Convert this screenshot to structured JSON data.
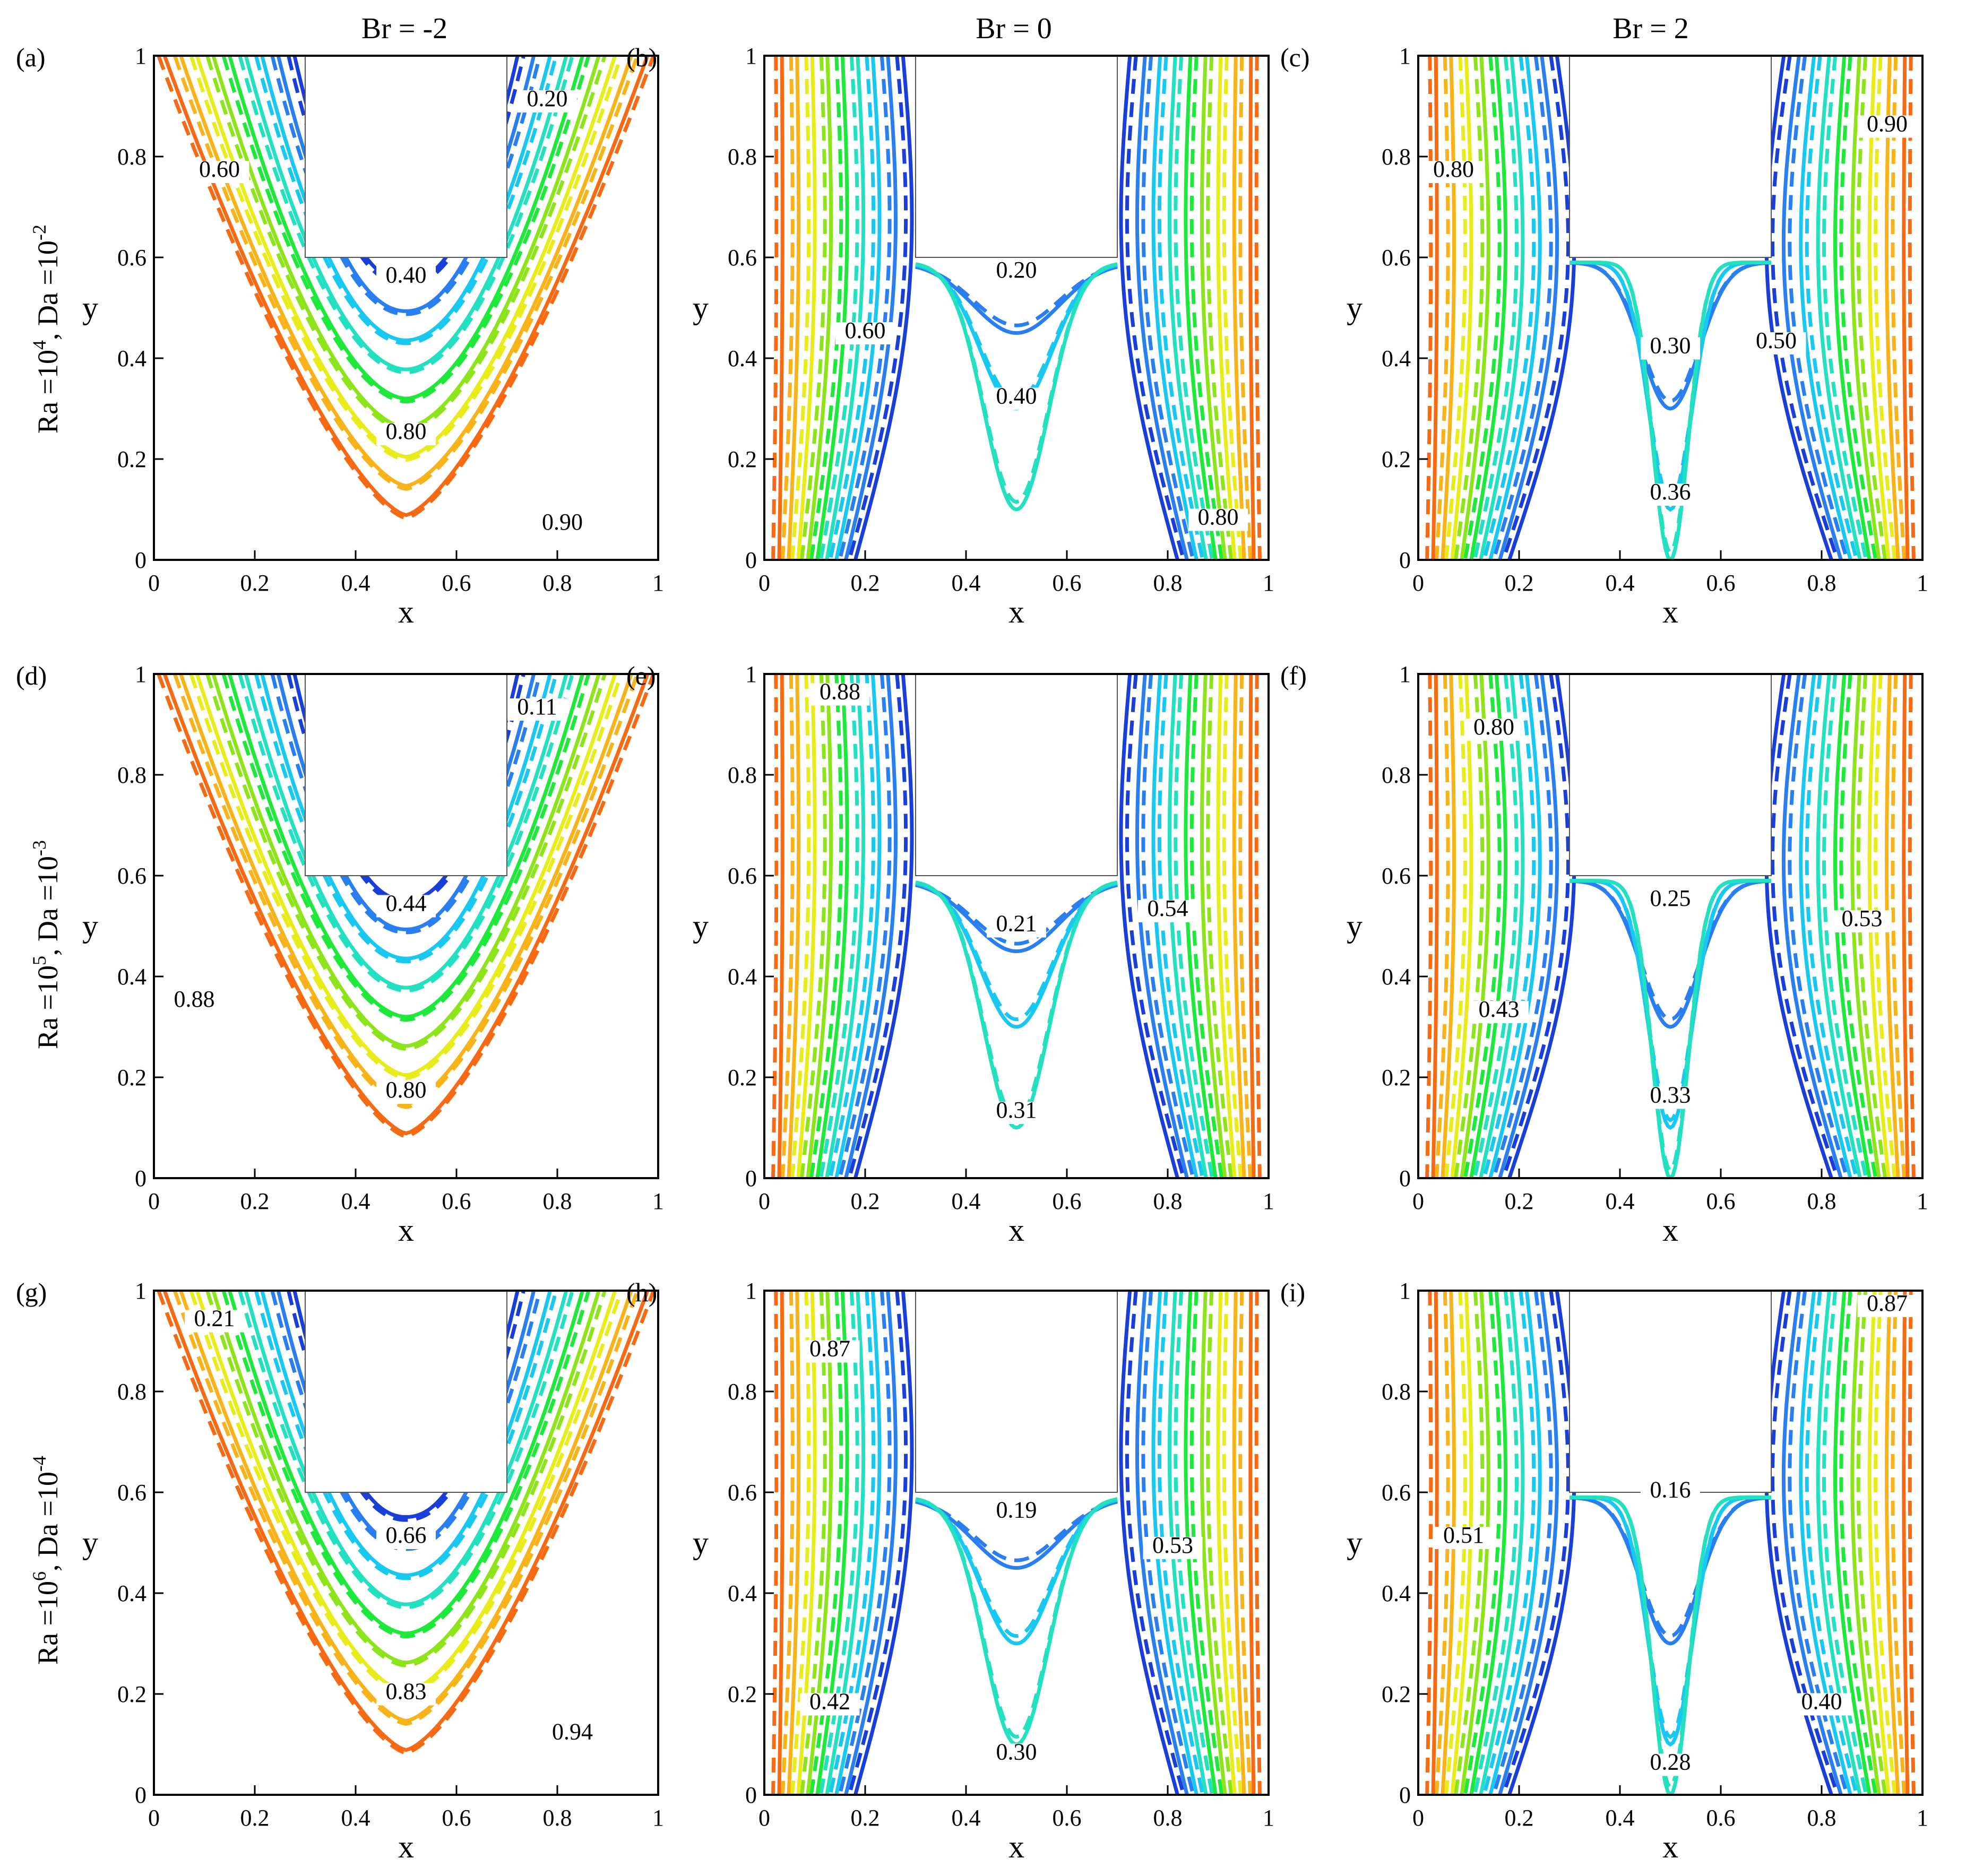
{
  "figure": {
    "column_headers": [
      "Br = -2",
      "Br = 0",
      "Br = 2"
    ],
    "row_labels": [
      {
        "ra_base": "Ra =10",
        "ra_exp": "4",
        "da_base": ",  Da =10",
        "da_exp": "-2"
      },
      {
        "ra_base": "Ra =10",
        "ra_exp": "5",
        "da_base": ",  Da =10",
        "da_exp": "-3"
      },
      {
        "ra_base": "Ra =10",
        "ra_exp": "6",
        "da_base": ",  Da =10",
        "da_exp": "-4"
      }
    ]
  },
  "chart_data": {
    "type": "contour",
    "xlabel": "x",
    "ylabel": "y",
    "xlim": [
      0,
      1
    ],
    "ylim": [
      0,
      1
    ],
    "xticks": [
      "0",
      "0.2",
      "0.4",
      "0.6",
      "0.8",
      "1"
    ],
    "yticks": [
      "0",
      "0.2",
      "0.4",
      "0.6",
      "0.8",
      "1"
    ],
    "obstacle": {
      "x": [
        0.3,
        0.7
      ],
      "y": [
        0.6,
        1.0
      ]
    },
    "line_styles": [
      "solid",
      "dashed"
    ],
    "colors": [
      "#1a3fd9",
      "#2a7ff0",
      "#19c8f0",
      "#22e0c0",
      "#1ee83a",
      "#8ee41a",
      "#e8ec1a",
      "#f8b21a",
      "#f76a14"
    ],
    "panels": [
      {
        "id": "(a)",
        "br": -2,
        "shape": "u",
        "labels": [
          {
            "text": "0.20",
            "x": 0.78,
            "y": 0.9
          },
          {
            "text": "0.60",
            "x": 0.13,
            "y": 0.76
          },
          {
            "text": "0.40",
            "x": 0.5,
            "y": 0.55
          },
          {
            "text": "0.80",
            "x": 0.5,
            "y": 0.24
          },
          {
            "text": "0.90",
            "x": 0.81,
            "y": 0.06
          }
        ]
      },
      {
        "id": "(b)",
        "br": 0,
        "shape": "v",
        "labels": [
          {
            "text": "0.20",
            "x": 0.5,
            "y": 0.56
          },
          {
            "text": "0.60",
            "x": 0.2,
            "y": 0.44
          },
          {
            "text": "0.40",
            "x": 0.5,
            "y": 0.31
          },
          {
            "text": "0.80",
            "x": 0.9,
            "y": 0.07
          }
        ]
      },
      {
        "id": "(c)",
        "br": 2,
        "shape": "w",
        "labels": [
          {
            "text": "0.90",
            "x": 0.93,
            "y": 0.85
          },
          {
            "text": "0.80",
            "x": 0.07,
            "y": 0.76
          },
          {
            "text": "0.30",
            "x": 0.5,
            "y": 0.41
          },
          {
            "text": "0.50",
            "x": 0.71,
            "y": 0.42
          },
          {
            "text": "0.36",
            "x": 0.5,
            "y": 0.12
          }
        ]
      },
      {
        "id": "(d)",
        "br": -2,
        "shape": "u",
        "labels": [
          {
            "text": "0.11",
            "x": 0.76,
            "y": 0.92
          },
          {
            "text": "0.44",
            "x": 0.5,
            "y": 0.53
          },
          {
            "text": "0.88",
            "x": 0.08,
            "y": 0.34
          },
          {
            "text": "0.80",
            "x": 0.5,
            "y": 0.16
          }
        ]
      },
      {
        "id": "(e)",
        "br": 0,
        "shape": "v",
        "labels": [
          {
            "text": "0.88",
            "x": 0.15,
            "y": 0.95
          },
          {
            "text": "0.21",
            "x": 0.5,
            "y": 0.49
          },
          {
            "text": "0.54",
            "x": 0.8,
            "y": 0.52
          },
          {
            "text": "0.31",
            "x": 0.5,
            "y": 0.12
          }
        ]
      },
      {
        "id": "(f)",
        "br": 2,
        "shape": "w",
        "labels": [
          {
            "text": "0.80",
            "x": 0.15,
            "y": 0.88
          },
          {
            "text": "0.25",
            "x": 0.5,
            "y": 0.54
          },
          {
            "text": "0.53",
            "x": 0.88,
            "y": 0.5
          },
          {
            "text": "0.43",
            "x": 0.16,
            "y": 0.32
          },
          {
            "text": "0.33",
            "x": 0.5,
            "y": 0.15
          }
        ]
      },
      {
        "id": "(g)",
        "br": -2,
        "shape": "u",
        "labels": [
          {
            "text": "0.21",
            "x": 0.12,
            "y": 0.93
          },
          {
            "text": "0.66",
            "x": 0.5,
            "y": 0.5
          },
          {
            "text": "0.83",
            "x": 0.5,
            "y": 0.19
          },
          {
            "text": "0.94",
            "x": 0.83,
            "y": 0.11
          }
        ]
      },
      {
        "id": "(h)",
        "br": 0,
        "shape": "v",
        "labels": [
          {
            "text": "0.87",
            "x": 0.13,
            "y": 0.87
          },
          {
            "text": "0.19",
            "x": 0.5,
            "y": 0.55
          },
          {
            "text": "0.53",
            "x": 0.81,
            "y": 0.48
          },
          {
            "text": "0.42",
            "x": 0.13,
            "y": 0.17
          },
          {
            "text": "0.30",
            "x": 0.5,
            "y": 0.07
          }
        ]
      },
      {
        "id": "(i)",
        "br": 2,
        "shape": "w",
        "labels": [
          {
            "text": "0.87",
            "x": 0.93,
            "y": 0.96
          },
          {
            "text": "0.16",
            "x": 0.5,
            "y": 0.59
          },
          {
            "text": "0.51",
            "x": 0.09,
            "y": 0.5
          },
          {
            "text": "0.40",
            "x": 0.8,
            "y": 0.17
          },
          {
            "text": "0.28",
            "x": 0.5,
            "y": 0.05
          }
        ]
      }
    ]
  }
}
